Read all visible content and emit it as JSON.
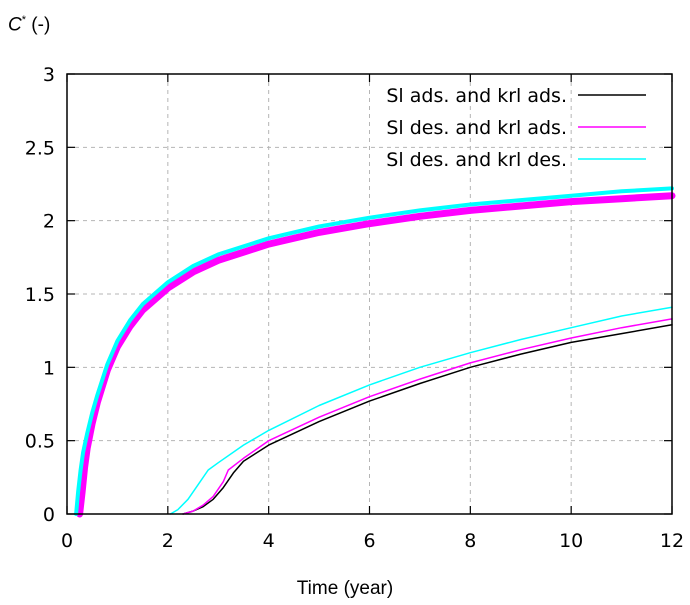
{
  "chart_data": {
    "type": "line",
    "ylabel_symbol": "C",
    "ylabel_sup": "*",
    "ylabel_unit": " (-)",
    "xlabel": "Time (year)",
    "xlim": [
      0,
      12
    ],
    "ylim": [
      0,
      3
    ],
    "xticks": [
      0,
      2,
      4,
      6,
      8,
      10,
      12
    ],
    "yticks": [
      0,
      0.5,
      1,
      1.5,
      2,
      2.5,
      3
    ],
    "ytick_labels": [
      "0",
      "0.5",
      "1",
      "1.5",
      "2",
      "2.5",
      "3"
    ],
    "grid": true,
    "legend_position": "top-right",
    "series": [
      {
        "name": "Sl ads. and krl ads.",
        "color": "#000000",
        "width": 1.5,
        "x": [
          0.25,
          0.3,
          0.35,
          0.4,
          0.5,
          0.6,
          0.8,
          1.0,
          1.25,
          1.5,
          2.0,
          2.5,
          3.0,
          4.0,
          5.0,
          6.0,
          7.0,
          8.0,
          9.0,
          10.0,
          11.0,
          12.0
        ],
        "y": [
          0,
          0.15,
          0.32,
          0.45,
          0.62,
          0.76,
          0.98,
          1.14,
          1.28,
          1.39,
          1.54,
          1.65,
          1.73,
          1.84,
          1.92,
          1.98,
          2.03,
          2.07,
          2.1,
          2.13,
          2.15,
          2.17
        ]
      },
      {
        "name": "",
        "color": "#000000",
        "width": 1.5,
        "x": [
          2.3,
          2.5,
          2.7,
          2.9,
          3.1,
          3.3,
          3.5,
          4.0,
          5.0,
          6.0,
          7.0,
          8.0,
          9.0,
          10.0,
          11.0,
          12.0
        ],
        "y": [
          0,
          0.02,
          0.05,
          0.1,
          0.18,
          0.28,
          0.36,
          0.47,
          0.63,
          0.77,
          0.89,
          1.0,
          1.09,
          1.17,
          1.23,
          1.29
        ]
      },
      {
        "name": "Sl des. and krl ads.",
        "color": "#ff00ff",
        "width": 7,
        "x": [
          0.25,
          0.3,
          0.35,
          0.4,
          0.5,
          0.6,
          0.8,
          1.0,
          1.25,
          1.5,
          2.0,
          2.5,
          3.0,
          4.0,
          5.0,
          6.0,
          7.0,
          8.0,
          9.0,
          10.0,
          11.0,
          12.0
        ],
        "y": [
          0,
          0.15,
          0.32,
          0.45,
          0.62,
          0.76,
          0.98,
          1.14,
          1.28,
          1.39,
          1.54,
          1.65,
          1.73,
          1.84,
          1.92,
          1.98,
          2.03,
          2.07,
          2.1,
          2.13,
          2.15,
          2.17
        ]
      },
      {
        "name": "",
        "color": "#ff00ff",
        "width": 1.5,
        "x": [
          2.3,
          2.5,
          2.7,
          2.9,
          3.1,
          3.2,
          3.5,
          4.0,
          5.0,
          6.0,
          7.0,
          8.0,
          9.0,
          10.0,
          11.0,
          12.0
        ],
        "y": [
          0,
          0.02,
          0.06,
          0.12,
          0.22,
          0.3,
          0.38,
          0.5,
          0.66,
          0.8,
          0.92,
          1.03,
          1.12,
          1.2,
          1.27,
          1.33
        ]
      },
      {
        "name": "Sl des. and krl des.",
        "color": "#00ffff",
        "width": 4,
        "x": [
          0.18,
          0.22,
          0.27,
          0.32,
          0.4,
          0.5,
          0.6,
          0.8,
          1.0,
          1.25,
          1.5,
          2.0,
          2.5,
          3.0,
          4.0,
          5.0,
          6.0,
          7.0,
          8.0,
          9.0,
          10.0,
          11.0,
          12.0
        ],
        "y": [
          0,
          0.15,
          0.3,
          0.42,
          0.55,
          0.69,
          0.81,
          1.02,
          1.18,
          1.32,
          1.43,
          1.58,
          1.69,
          1.77,
          1.88,
          1.96,
          2.02,
          2.07,
          2.11,
          2.14,
          2.17,
          2.2,
          2.22
        ]
      },
      {
        "name": "",
        "color": "#00ffff",
        "width": 1.5,
        "x": [
          2.05,
          2.2,
          2.4,
          2.6,
          2.8,
          3.0,
          3.5,
          4.0,
          5.0,
          6.0,
          7.0,
          8.0,
          9.0,
          10.0,
          11.0,
          12.0
        ],
        "y": [
          0,
          0.03,
          0.1,
          0.2,
          0.3,
          0.35,
          0.47,
          0.57,
          0.74,
          0.88,
          1.0,
          1.1,
          1.19,
          1.27,
          1.35,
          1.41
        ]
      }
    ],
    "legend": [
      {
        "label": "Sl ads. and krl ads.",
        "color": "#000000"
      },
      {
        "label": "Sl des. and krl ads.",
        "color": "#ff00ff"
      },
      {
        "label": "Sl des. and krl des.",
        "color": "#00ffff"
      }
    ]
  }
}
